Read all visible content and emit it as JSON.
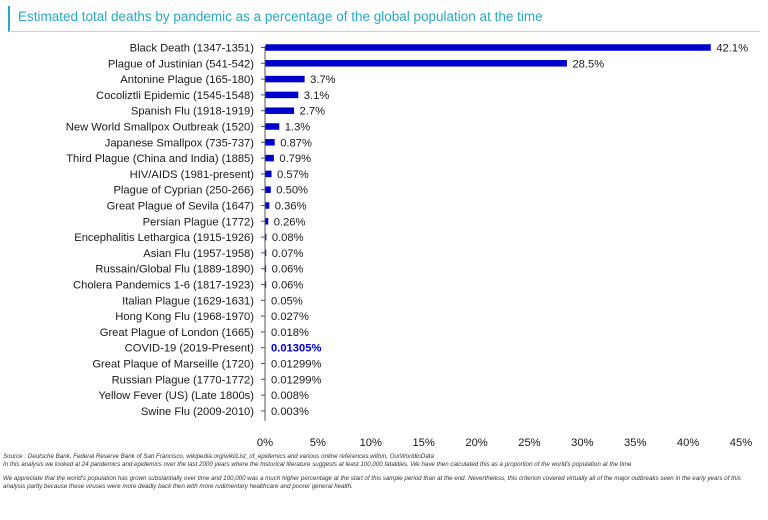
{
  "title": "Estimated total deaths by pandemic as a percentage of the global population at the time",
  "colors": {
    "bar": "#0000cc",
    "title": "#27a9c8",
    "highlight": "#0000cc"
  },
  "chart_data": {
    "type": "bar",
    "orientation": "horizontal",
    "title": "Estimated total deaths by pandemic as a percentage of the global population at the time",
    "categories": [
      "Black Death (1347-1351)",
      "Plague of Justinian (541-542)",
      "Antonine Plague (165-180)",
      "Cocoliztli Epidemic (1545-1548)",
      "Spanish Flu (1918-1919)",
      "New World Smallpox Outbreak (1520)",
      "Japanese Smallpox (735-737)",
      "Third Plague (China and India) (1885)",
      "HIV/AIDS (1981-present)",
      "Plague of Cyprian (250-266)",
      "Great Plague of Sevila (1647)",
      "Persian Plague (1772)",
      "Encephalitis Lethargica  (1915-1926)",
      "Asian Flu (1957-1958)",
      "Russain/Global Flu  (1889-1890)",
      "Cholera Pandemics 1-6 (1817-1923)",
      "Italian Plague (1629-1631)",
      "Hong Kong Flu (1968-1970)",
      "Great Plague of London (1665)",
      "COVID-19 (2019-Present)",
      "Great Plaque of Marseille (1720)",
      "Russian Plague (1770-1772)",
      "Yellow Fever (US) (Late 1800s)",
      "Swine Flu (2009-2010)"
    ],
    "values": [
      42.1,
      28.5,
      3.7,
      3.1,
      2.7,
      1.3,
      0.87,
      0.79,
      0.57,
      0.5,
      0.36,
      0.26,
      0.08,
      0.07,
      0.06,
      0.06,
      0.05,
      0.027,
      0.018,
      0.01305,
      0.01299,
      0.01299,
      0.008,
      0.003
    ],
    "value_labels": [
      "42.1%",
      "28.5%",
      "3.7%",
      "3.1%",
      "2.7%",
      "1.3%",
      "0.87%",
      "0.79%",
      "0.57%",
      "0.50%",
      "0.36%",
      "0.26%",
      "0.08%",
      "0.07%",
      "0.06%",
      "0.06%",
      "0.05%",
      "0.027%",
      "0.018%",
      "0.01305%",
      "0.01299%",
      "0.01299%",
      "0.008%",
      "0.003%"
    ],
    "highlight_category": "COVID-19 (2019-Present)",
    "xlim": [
      0,
      45
    ],
    "xticks": [
      0,
      5,
      10,
      15,
      20,
      25,
      30,
      35,
      40,
      45
    ],
    "xtick_labels": [
      "0%",
      "5%",
      "10%",
      "15%",
      "20%",
      "25%",
      "30%",
      "35%",
      "40%",
      "45%"
    ],
    "xlabel": "",
    "ylabel": "",
    "grid": false,
    "legend": "none"
  },
  "footer": {
    "source": "Source : Deutsche Bank, Federal Reserve Bank of San Francisco, wikipedia.org/wiki/List_of_epidemics and various online references within, OurWorldinData",
    "method": "In this analysis we looked at 24 pandemics and epidemics over the last 2000 years where the historical literature suggests at least 100,000 fatalities. We have then calculated this as a proportion of the world's population at the time",
    "note": "We appreciate that the world's population has grown substantially over time and 100,000 was a much higher percentage at the start of this sample period than at the end. Nevertheless, this criterion covered virtually all of the major outbreaks seen in the early years of this analysis partly because these viruses were more deadly back then with more rudimentary healthcare and poorer general health."
  }
}
